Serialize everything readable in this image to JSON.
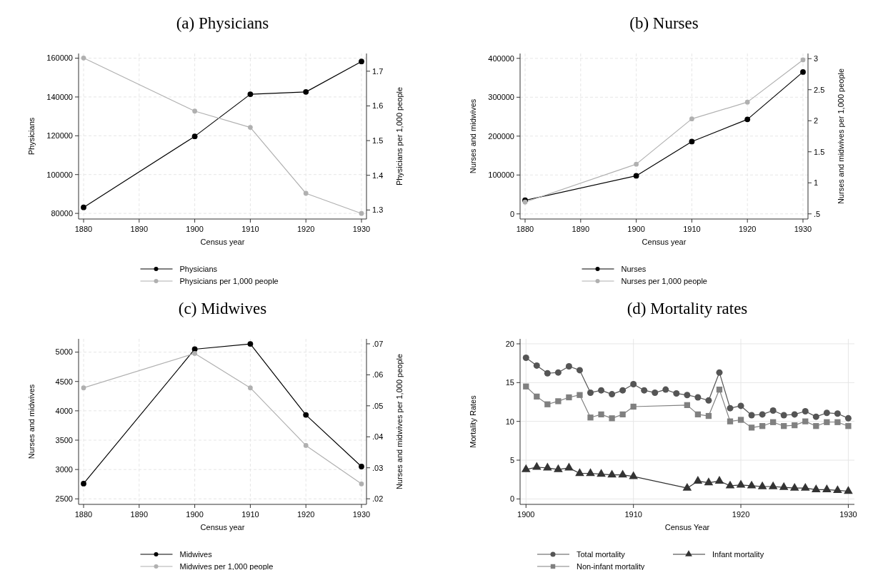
{
  "chart_data": [
    {
      "type": "line",
      "title": "(a) Physicians",
      "xlabel": "Census year",
      "ylabel": "Physicians",
      "y2label": "Physicians per 1,000 people",
      "x": [
        1880,
        1900,
        1910,
        1920,
        1930
      ],
      "xlim": [
        1879.1,
        1930.9
      ],
      "xticks": [
        1880,
        1890,
        1900,
        1910,
        1920,
        1930
      ],
      "ylim": [
        77100,
        162400
      ],
      "yticks": [
        80000,
        100000,
        120000,
        140000,
        160000
      ],
      "y2lim": [
        1.274,
        1.751
      ],
      "y2ticks": [
        1.3,
        1.4,
        1.5,
        1.6,
        1.7
      ],
      "grid": true,
      "legend": "bottom",
      "marker": "circle",
      "series": [
        {
          "name": "Physicians",
          "color": "#000000",
          "values": [
            83100,
            119700,
            141400,
            142600,
            158300
          ]
        },
        {
          "name": "Physicians per 1,000 people",
          "color": "#b0b0b0",
          "axis": "y2",
          "values": [
            1.738,
            1.585,
            1.538,
            1.348,
            1.29
          ]
        }
      ]
    },
    {
      "type": "line",
      "title": "(b) Nurses",
      "xlabel": "Census year",
      "ylabel": "Nurses and midwives",
      "y2label": "Nurses and midwives per 1,000 people",
      "x": [
        1880,
        1900,
        1910,
        1920,
        1930
      ],
      "xlim": [
        1879.1,
        1930.9
      ],
      "xticks": [
        1880,
        1890,
        1900,
        1910,
        1920,
        1930
      ],
      "ylim": [
        -13200,
        412500
      ],
      "yticks": [
        0,
        100000,
        200000,
        300000,
        400000
      ],
      "y2lim": [
        0.417,
        3.083
      ],
      "y2ticks": [
        {
          "value": 0.5,
          "label": ".5"
        },
        1,
        1.5,
        2,
        2.5,
        3
      ],
      "grid": true,
      "legend": "bottom",
      "marker": "circle",
      "series": [
        {
          "name": "Nurses",
          "color": "#000000",
          "values": [
            35000,
            98000,
            186000,
            243000,
            365000
          ]
        },
        {
          "name": "Nurses per 1,000 people",
          "color": "#b0b0b0",
          "axis": "y2",
          "values": [
            0.69,
            1.3,
            2.03,
            2.3,
            2.98
          ]
        }
      ]
    },
    {
      "type": "line",
      "title": "(c) Midwives",
      "xlabel": "Census year",
      "ylabel": "Nurses and midwives",
      "y2label": "Nurses and midwives per 1,000 people",
      "x": [
        1880,
        1900,
        1910,
        1920,
        1930
      ],
      "xlim": [
        1879.1,
        1930.9
      ],
      "xticks": [
        1880,
        1890,
        1900,
        1910,
        1920,
        1930
      ],
      "ylim": [
        2406,
        5226
      ],
      "yticks": [
        2500,
        3000,
        3500,
        4000,
        4500,
        5000
      ],
      "y2lim": [
        0.0182,
        0.0716
      ],
      "y2ticks": [
        {
          "value": 0.02,
          "label": ".02"
        },
        {
          "value": 0.03,
          "label": ".03"
        },
        {
          "value": 0.04,
          "label": ".04"
        },
        {
          "value": 0.05,
          "label": ".05"
        },
        {
          "value": 0.06,
          "label": ".06"
        },
        {
          "value": 0.07,
          "label": ".07"
        }
      ],
      "grid": true,
      "legend": "bottom",
      "marker": "circle",
      "series": [
        {
          "name": "Midwives",
          "color": "#000000",
          "values": [
            2760,
            5050,
            5140,
            3930,
            3050
          ]
        },
        {
          "name": "Midwives per 1,000 people",
          "color": "#b0b0b0",
          "axis": "y2",
          "values": [
            0.0558,
            0.0669,
            0.0558,
            0.0372,
            0.0248
          ]
        }
      ]
    },
    {
      "type": "line",
      "title": "(d) Mortality rates",
      "xlabel": "Census Year",
      "ylabel": "Mortality Rates",
      "xlim": [
        1899.45,
        1930.57
      ],
      "xticks": [
        1900,
        1910,
        1920,
        1930
      ],
      "ylim": [
        -0.7,
        20.64
      ],
      "yticks": [
        0,
        5,
        10,
        15,
        20
      ],
      "grid": true,
      "legend": "bottom",
      "series": [
        {
          "name": "Total mortality",
          "color": "#555555",
          "marker": "circle",
          "x": [
            1900,
            1901,
            1902,
            1903,
            1904,
            1905,
            1906,
            1907,
            1908,
            1909,
            1910,
            1911,
            1912,
            1913,
            1914,
            1915,
            1916,
            1917,
            1918,
            1919,
            1920,
            1921,
            1922,
            1923,
            1924,
            1925,
            1926,
            1927,
            1928,
            1929,
            1930
          ],
          "values": [
            18.2,
            17.2,
            16.2,
            16.3,
            17.1,
            16.6,
            13.7,
            14,
            13.5,
            14,
            14.8,
            14,
            13.7,
            14.1,
            13.6,
            13.4,
            13.1,
            12.7,
            16.3,
            11.7,
            12,
            10.8,
            10.9,
            11.4,
            10.8,
            10.9,
            11.3,
            10.6,
            11.1,
            11,
            10.4
          ]
        },
        {
          "name": "Non-infant mortality",
          "color": "#808080",
          "marker": "square",
          "x": [
            1900,
            1901,
            1902,
            1903,
            1904,
            1905,
            1906,
            1907,
            1908,
            1909,
            1910,
            1915,
            1916,
            1917,
            1918,
            1919,
            1920,
            1921,
            1922,
            1923,
            1924,
            1925,
            1926,
            1927,
            1928,
            1929,
            1930
          ],
          "values": [
            14.5,
            13.2,
            12.2,
            12.6,
            13.1,
            13.4,
            10.5,
            10.9,
            10.4,
            10.9,
            11.9,
            12.1,
            10.9,
            10.7,
            14.1,
            10,
            10.2,
            9.2,
            9.4,
            9.9,
            9.4,
            9.5,
            10,
            9.4,
            9.9,
            9.9,
            9.4
          ]
        },
        {
          "name": "Infant mortality",
          "color": "#333333",
          "marker": "triangle",
          "x": [
            1900,
            1901,
            1902,
            1903,
            1904,
            1905,
            1906,
            1907,
            1908,
            1909,
            1910,
            1915,
            1916,
            1917,
            1918,
            1919,
            1920,
            1921,
            1922,
            1923,
            1924,
            1925,
            1926,
            1927,
            1928,
            1929,
            1930
          ],
          "values": [
            3.8,
            4.1,
            4,
            3.8,
            4,
            3.3,
            3.3,
            3.2,
            3.1,
            3.1,
            2.9,
            1.4,
            2.3,
            2.1,
            2.3,
            1.7,
            1.8,
            1.7,
            1.6,
            1.6,
            1.5,
            1.4,
            1.4,
            1.2,
            1.2,
            1.1,
            1
          ]
        }
      ]
    }
  ]
}
